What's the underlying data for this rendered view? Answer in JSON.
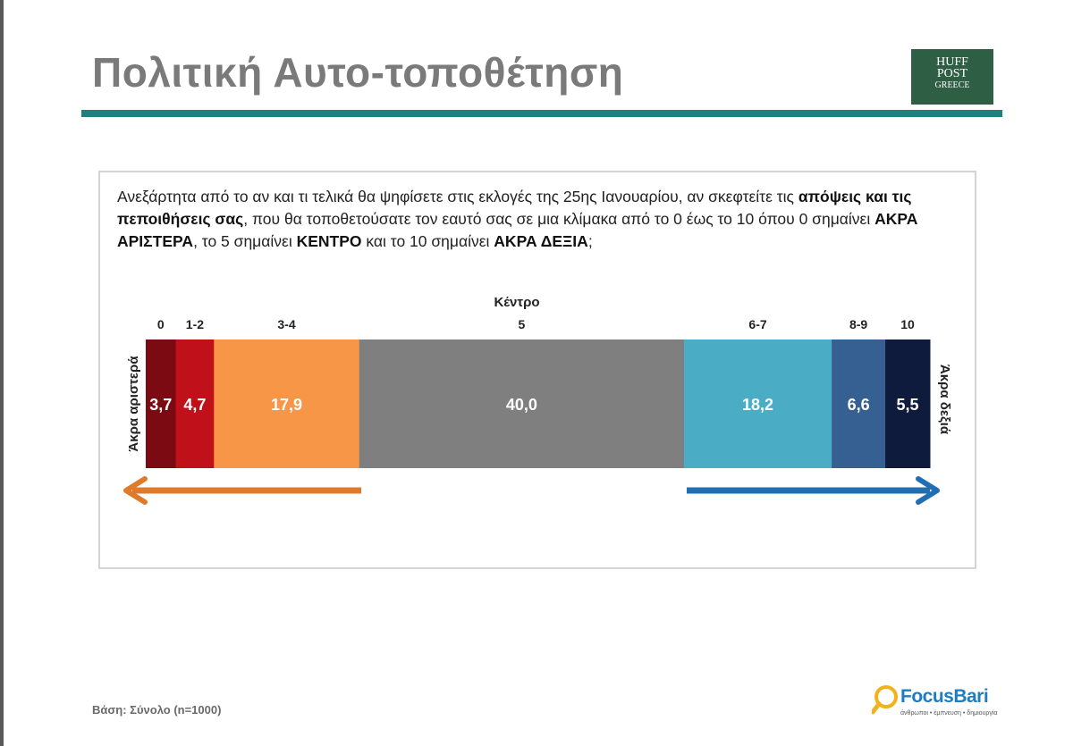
{
  "title": "Πολιτική Αυτο-τοποθέτηση",
  "logo": {
    "line1": "HUFF",
    "line2": "POST",
    "line3": "GREECE",
    "color": "#2e5e43"
  },
  "question": {
    "p1": "Ανεξάρτητα από το αν και τι τελικά θα ψηφίσετε στις εκλογές της 25ης Ιανουαρίου, αν σκεφτείτε τις ",
    "b1": "απόψεις και τις πεποιθήσεις σας",
    "p2": ", που θα τοποθετούσατε τον εαυτό σας σε μια κλίμακα από το 0 έως το 10 όπου 0 σημαίνει ",
    "b2": "ΑΚΡΑ ΑΡΙΣΤΕΡΑ",
    "p3": ", το 5 σημαίνει ",
    "b3": "ΚΕΝΤΡΟ",
    "p4": " και το 10 σημαίνει ",
    "b4": "ΑΚΡΑ ΔΕΞΙΑ",
    "p5": ";"
  },
  "chart_data": {
    "type": "bar",
    "orientation": "horizontal-stacked-100",
    "center_label": "Κέντρο",
    "left_label": "Άκρα αριστερά",
    "right_label": "Άκρα δεξιά",
    "categories": [
      "0",
      "1-2",
      "3-4",
      "5",
      "6-7",
      "8-9",
      "10"
    ],
    "values": [
      3.7,
      4.7,
      17.9,
      40.0,
      18.2,
      6.6,
      5.5
    ],
    "value_labels": [
      "3,7",
      "4,7",
      "17,9",
      "40,0",
      "18,2",
      "6,6",
      "5,5"
    ],
    "colors": [
      "#7b0a12",
      "#c0111a",
      "#f79646",
      "#7f7f7f",
      "#4bacc6",
      "#376092",
      "#0e1b3d"
    ],
    "arrows": {
      "left_color": "#e07a2b",
      "right_color": "#1f6fb2"
    }
  },
  "footer": {
    "base": "Βάση: Σύνολο (n=1000)",
    "brand": "FocusBari",
    "tagline": "άνθρωποι • έμπνευση • δημιουργία"
  }
}
